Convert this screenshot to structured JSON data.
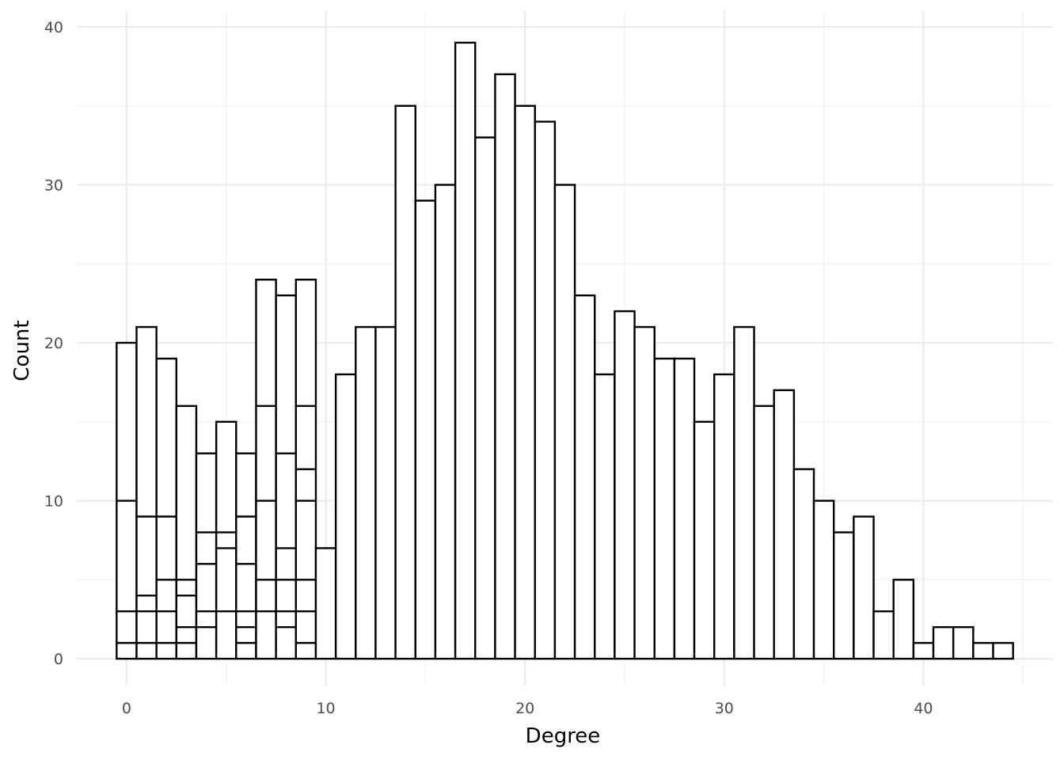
{
  "chart_data": {
    "type": "bar",
    "xlabel": "Degree",
    "ylabel": "Count",
    "xlim": [
      -2.5,
      46.5
    ],
    "ylim": [
      -1.7,
      41
    ],
    "x_ticks": [
      0,
      10,
      20,
      30,
      40
    ],
    "y_ticks": [
      0,
      10,
      20,
      30,
      40
    ],
    "grid": true,
    "bar_fill": "#ffffff",
    "bar_stroke": "#000000",
    "x": [
      0,
      1,
      2,
      3,
      4,
      5,
      6,
      7,
      8,
      9,
      10,
      11,
      12,
      13,
      14,
      15,
      16,
      17,
      18,
      19,
      20,
      21,
      22,
      23,
      24,
      25,
      26,
      27,
      28,
      29,
      30,
      31,
      32,
      33,
      34,
      35,
      36,
      37,
      38,
      39,
      40,
      41,
      42,
      43,
      44
    ],
    "values": [
      20,
      21,
      19,
      16,
      13,
      15,
      13,
      24,
      23,
      24,
      7,
      18,
      21,
      21,
      35,
      29,
      30,
      39,
      33,
      37,
      35,
      34,
      30,
      23,
      18,
      22,
      21,
      19,
      19,
      15,
      18,
      21,
      16,
      17,
      12,
      10,
      8,
      9,
      3,
      5,
      1,
      2,
      2,
      1,
      1
    ],
    "stack_boundaries": [
      [
        1,
        3,
        10
      ],
      [
        1,
        3,
        4,
        9
      ],
      [
        1,
        3,
        5,
        9
      ],
      [
        1,
        2,
        4,
        5
      ],
      [
        2,
        3,
        6,
        8
      ],
      [
        3,
        7,
        8
      ],
      [
        1,
        2,
        3,
        6,
        9
      ],
      [
        3,
        5,
        10,
        16
      ],
      [
        2,
        3,
        5,
        7,
        13
      ],
      [
        1,
        3,
        5,
        10,
        12,
        16
      ],
      [],
      [],
      [],
      [],
      [],
      [],
      [],
      [],
      [],
      [],
      [],
      [],
      [],
      [],
      [],
      [],
      [],
      [],
      [],
      [],
      [],
      [],
      [],
      [],
      [],
      [],
      [],
      [],
      [],
      [],
      [],
      [],
      [],
      [],
      []
    ]
  }
}
